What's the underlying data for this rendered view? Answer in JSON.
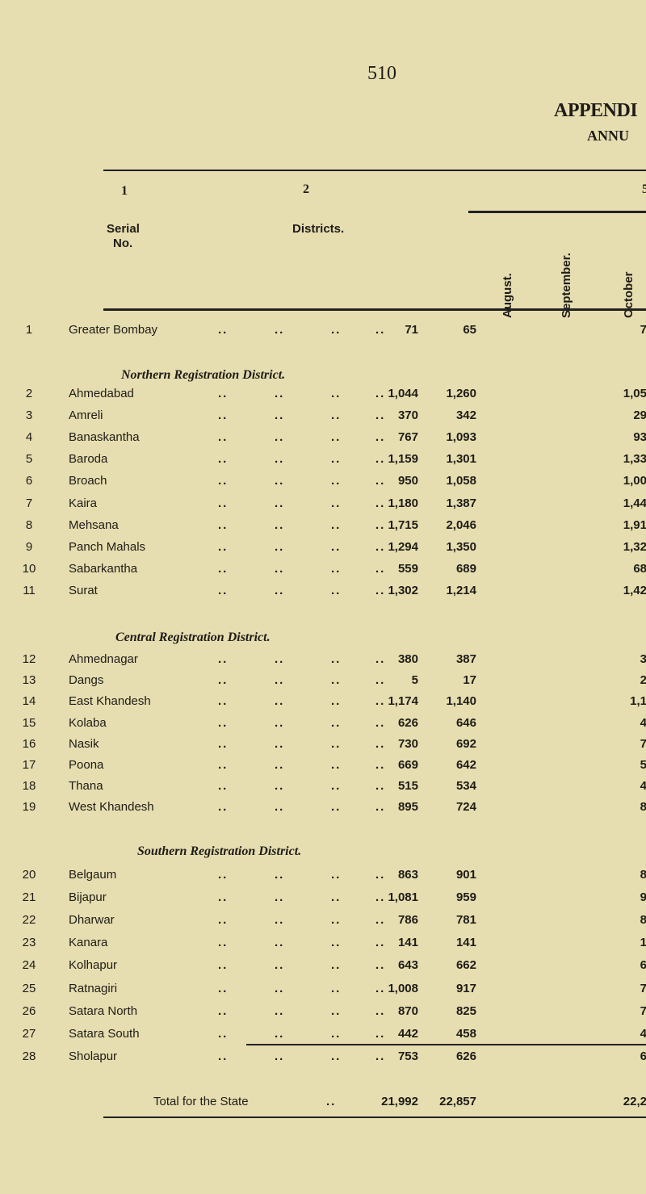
{
  "page_number": "510",
  "title": "APPENDI",
  "subtitle": "ANNU",
  "column_numbers": [
    "1",
    "2",
    "5"
  ],
  "headers": {
    "serial": "Serial",
    "serial2": "No.",
    "districts": "Districts.",
    "months": [
      "August.",
      "September.",
      "October"
    ]
  },
  "sections": [
    {
      "heading": "",
      "rows": [
        {
          "no": "1",
          "district": "Greater Bombay",
          "aug": "71",
          "sep": "65",
          "oct": "7"
        }
      ]
    },
    {
      "heading": "Northern Registration District.",
      "rows": [
        {
          "no": "2",
          "district": "Ahmedabad",
          "aug": "1,044",
          "sep": "1,260",
          "oct": "1,05"
        },
        {
          "no": "3",
          "district": "Amreli",
          "aug": "370",
          "sep": "342",
          "oct": "29"
        },
        {
          "no": "4",
          "district": "Banaskantha",
          "aug": "767",
          "sep": "1,093",
          "oct": "93"
        },
        {
          "no": "5",
          "district": "Baroda",
          "aug": "1,159",
          "sep": "1,301",
          "oct": "1,33"
        },
        {
          "no": "6",
          "district": "Broach",
          "aug": "950",
          "sep": "1,058",
          "oct": "1,00"
        },
        {
          "no": "7",
          "district": "Kaira",
          "aug": "1,180",
          "sep": "1,387",
          "oct": "1,44"
        },
        {
          "no": "8",
          "district": "Mehsana",
          "aug": "1,715",
          "sep": "2,046",
          "oct": "1,91"
        },
        {
          "no": "9",
          "district": "Panch Mahals",
          "aug": "1,294",
          "sep": "1,350",
          "oct": "1,32"
        },
        {
          "no": "10",
          "district": "Sabarkantha",
          "aug": "559",
          "sep": "689",
          "oct": "68"
        },
        {
          "no": "11",
          "district": "Surat",
          "aug": "1,302",
          "sep": "1,214",
          "oct": "1,42"
        }
      ]
    },
    {
      "heading": "Central Registration District.",
      "rows": [
        {
          "no": "12",
          "district": "Ahmednagar",
          "aug": "380",
          "sep": "387",
          "oct": "3"
        },
        {
          "no": "13",
          "district": "Dangs",
          "aug": "5",
          "sep": "17",
          "oct": "2"
        },
        {
          "no": "14",
          "district": "East Khandesh",
          "aug": "1,174",
          "sep": "1,140",
          "oct": "1,1"
        },
        {
          "no": "15",
          "district": "Kolaba",
          "aug": "626",
          "sep": "646",
          "oct": "4"
        },
        {
          "no": "16",
          "district": "Nasik",
          "aug": "730",
          "sep": "692",
          "oct": "7"
        },
        {
          "no": "17",
          "district": "Poona",
          "aug": "669",
          "sep": "642",
          "oct": "5"
        },
        {
          "no": "18",
          "district": "Thana",
          "aug": "515",
          "sep": "534",
          "oct": "4"
        },
        {
          "no": "19",
          "district": "West Khandesh",
          "aug": "895",
          "sep": "724",
          "oct": "8"
        }
      ]
    },
    {
      "heading": "Southern Registration District.",
      "rows": [
        {
          "no": "20",
          "district": "Belgaum",
          "aug": "863",
          "sep": "901",
          "oct": "8"
        },
        {
          "no": "21",
          "district": "Bijapur",
          "aug": "1,081",
          "sep": "959",
          "oct": "9"
        },
        {
          "no": "22",
          "district": "Dharwar",
          "aug": "786",
          "sep": "781",
          "oct": "8"
        },
        {
          "no": "23",
          "district": "Kanara",
          "aug": "141",
          "sep": "141",
          "oct": "1"
        },
        {
          "no": "24",
          "district": "Kolhapur",
          "aug": "643",
          "sep": "662",
          "oct": "6"
        },
        {
          "no": "25",
          "district": "Ratnagiri",
          "aug": "1,008",
          "sep": "917",
          "oct": "7"
        },
        {
          "no": "26",
          "district": "Satara North",
          "aug": "870",
          "sep": "825",
          "oct": "7"
        },
        {
          "no": "27",
          "district": "Satara South",
          "aug": "442",
          "sep": "458",
          "oct": "4"
        },
        {
          "no": "28",
          "district": "Sholapur",
          "aug": "753",
          "sep": "626",
          "oct": "6"
        }
      ]
    }
  ],
  "total": {
    "label": "Total for the State",
    "aug": "21,992",
    "sep": "22,857",
    "oct": "22,2"
  },
  "leader_dots": ".."
}
